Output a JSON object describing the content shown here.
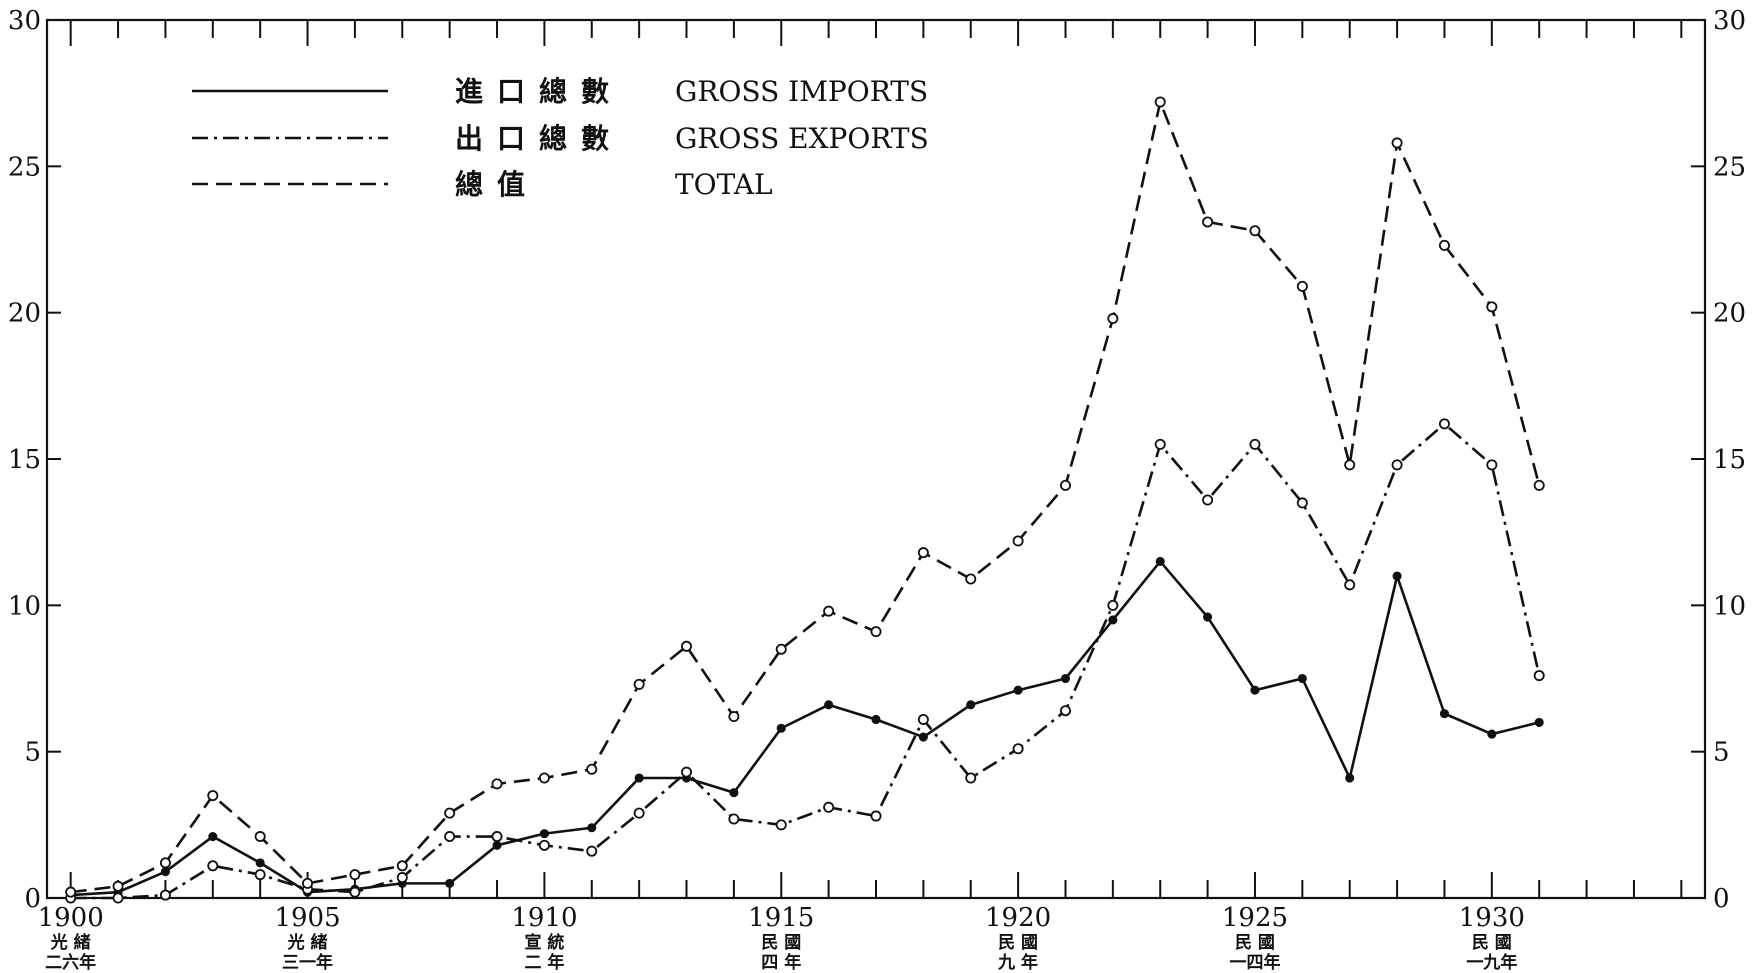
{
  "chart_data": {
    "type": "line",
    "x": [
      1900,
      1901,
      1902,
      1903,
      1904,
      1905,
      1906,
      1907,
      1908,
      1909,
      1910,
      1911,
      1912,
      1913,
      1914,
      1915,
      1916,
      1917,
      1918,
      1919,
      1920,
      1921,
      1922,
      1923,
      1924,
      1925,
      1926,
      1927,
      1928,
      1929,
      1930,
      1931
    ],
    "xlim": [
      1899.5,
      1934.5
    ],
    "ylim": [
      0,
      30
    ],
    "y_ticks": [
      0,
      5,
      10,
      15,
      20,
      25,
      30
    ],
    "x_ticks": [
      {
        "year": 1900,
        "label": "1900",
        "sub1": "光 緒",
        "sub2": "二六年"
      },
      {
        "year": 1905,
        "label": "1905",
        "sub1": "光 緒",
        "sub2": "三一年"
      },
      {
        "year": 1910,
        "label": "1910",
        "sub1": "宣 統",
        "sub2": "二  年"
      },
      {
        "year": 1915,
        "label": "1915",
        "sub1": "民 國",
        "sub2": "四  年"
      },
      {
        "year": 1920,
        "label": "1920",
        "sub1": "民 國",
        "sub2": "九  年"
      },
      {
        "year": 1925,
        "label": "1925",
        "sub1": "民 國",
        "sub2": "一四年"
      },
      {
        "year": 1930,
        "label": "1930",
        "sub1": "民 國",
        "sub2": "一九年"
      }
    ],
    "series": [
      {
        "name": "GROSS IMPORTS",
        "name_cn": "進口總數",
        "style": "solid",
        "marker": "filled",
        "values": [
          0.1,
          0.2,
          0.9,
          2.1,
          1.2,
          0.2,
          0.3,
          0.5,
          0.5,
          1.8,
          2.2,
          2.4,
          4.1,
          4.1,
          3.6,
          5.8,
          6.6,
          6.1,
          5.5,
          6.6,
          7.1,
          7.5,
          9.5,
          11.5,
          9.6,
          7.1,
          7.5,
          4.1,
          11.0,
          6.3,
          5.6,
          6.0
        ]
      },
      {
        "name": "GROSS EXPORTS",
        "name_cn": "出口總數",
        "style": "dashdot",
        "marker": "open",
        "values": [
          0.0,
          0.0,
          0.1,
          1.1,
          0.8,
          0.3,
          0.2,
          0.7,
          2.1,
          2.1,
          1.8,
          1.6,
          2.9,
          4.3,
          2.7,
          2.5,
          3.1,
          2.8,
          6.1,
          4.1,
          5.1,
          6.4,
          10.0,
          15.5,
          13.6,
          15.5,
          13.5,
          10.7,
          14.8,
          16.2,
          14.8,
          7.6
        ]
      },
      {
        "name": "TOTAL",
        "name_cn": "總值",
        "style": "dashed",
        "marker": "open",
        "values": [
          0.2,
          0.4,
          1.2,
          3.5,
          2.1,
          0.5,
          0.8,
          1.1,
          2.9,
          3.9,
          4.1,
          4.4,
          7.3,
          8.6,
          6.2,
          8.5,
          9.8,
          9.1,
          11.8,
          10.9,
          12.2,
          14.1,
          19.8,
          27.2,
          23.1,
          22.8,
          20.9,
          14.8,
          25.8,
          22.3,
          20.2,
          14.1
        ]
      }
    ]
  }
}
